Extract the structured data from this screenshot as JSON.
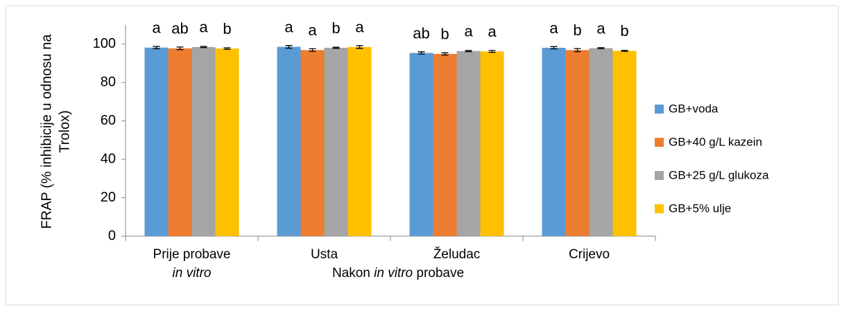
{
  "chart_data": {
    "type": "bar",
    "ylabel_lines": [
      "FRAP (% inhibicije u odnosu na",
      "Trolox)"
    ],
    "categories": [
      "Prije probave",
      "Usta",
      "Želudac",
      "Crijevo"
    ],
    "category_sublabels": [
      "in vitro",
      null,
      null,
      null
    ],
    "group_label_parts": [
      "Nakon ",
      "in vitro",
      " probave"
    ],
    "ylim": [
      0,
      110
    ],
    "yticks": [
      0,
      20,
      40,
      60,
      80,
      100
    ],
    "legend": "right",
    "series": [
      {
        "name": "GB+voda",
        "color": "#5b9bd5",
        "values": [
          98.2,
          98.6,
          95.4,
          98.1
        ],
        "errors": [
          0.6,
          0.7,
          0.6,
          0.6
        ],
        "letters": [
          "a",
          "a",
          "ab",
          "a"
        ]
      },
      {
        "name": "GB+40 g/L kazein",
        "color": "#ed7d31",
        "values": [
          97.8,
          96.9,
          94.9,
          96.9
        ],
        "errors": [
          0.7,
          0.7,
          0.6,
          0.8
        ],
        "letters": [
          "ab",
          "a",
          "b",
          "b"
        ]
      },
      {
        "name": "GB+25 g/L glukoza",
        "color": "#a5a5a5",
        "values": [
          98.5,
          98.1,
          96.4,
          97.9
        ],
        "errors": [
          0.3,
          0.3,
          0.3,
          0.3
        ],
        "letters": [
          "a",
          "b",
          "a",
          "a"
        ]
      },
      {
        "name": "GB+5% ulje",
        "color": "#ffc000",
        "values": [
          97.7,
          98.5,
          96.2,
          96.5
        ],
        "errors": [
          0.4,
          0.7,
          0.5,
          0.3
        ],
        "letters": [
          "b",
          "a",
          "a",
          "b"
        ]
      }
    ]
  }
}
